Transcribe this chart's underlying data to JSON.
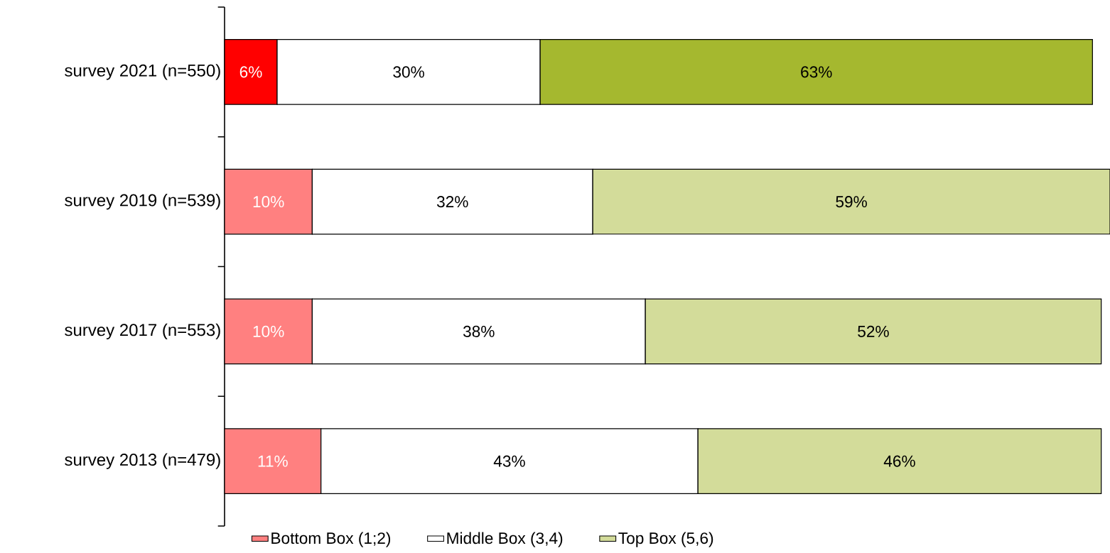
{
  "chart_data": {
    "type": "bar",
    "orientation": "horizontal",
    "stacked": true,
    "legend": "bottom",
    "categories": [
      "survey 2021 (n=550)",
      "survey 2019 (n=539)",
      "survey 2017 (n=553)",
      "survey 2013 (n=479)"
    ],
    "series": [
      {
        "name": "Bottom Box (1;2)",
        "color": "#ff8080",
        "colors": [
          "#ff0000",
          "#ff8080",
          "#ff8080",
          "#ff8080"
        ],
        "values": [
          6,
          10,
          10,
          11
        ],
        "value_labels": [
          "6%",
          "10%",
          "10%",
          "11%"
        ]
      },
      {
        "name": "Middle Box (3,4)",
        "color": "#ffffff",
        "colors": [
          "#ffffff",
          "#ffffff",
          "#ffffff",
          "#ffffff"
        ],
        "values": [
          30,
          32,
          38,
          43
        ],
        "value_labels": [
          "30%",
          "32%",
          "38%",
          "43%"
        ]
      },
      {
        "name": "Top Box (5,6)",
        "color": "#d3dc9a",
        "colors": [
          "#a5b82f",
          "#d3dc9a",
          "#d3dc9a",
          "#d3dc9a"
        ],
        "values": [
          63,
          59,
          52,
          46
        ],
        "value_labels": [
          "63%",
          "59%",
          "52%",
          "46%"
        ]
      }
    ]
  }
}
